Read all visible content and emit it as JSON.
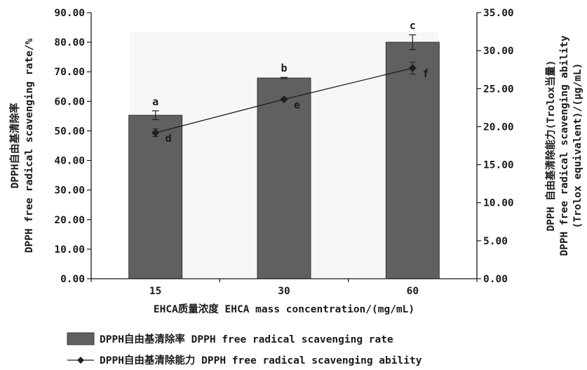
{
  "chart_data": {
    "type": "bar",
    "categories": [
      "15",
      "30",
      "60"
    ],
    "xlabel": "EHCA质量浓度 EHCA mass concentration/(mg/mL)",
    "left_axis": {
      "label_cn": "DPPH自由基清除率",
      "label_en": "DPPH free radical scavenging rate/%",
      "ylim": [
        0,
        90
      ],
      "ticks": [
        "0.00",
        "10.00",
        "20.00",
        "30.00",
        "40.00",
        "50.00",
        "60.00",
        "70.00",
        "80.00",
        "90.00"
      ]
    },
    "right_axis": {
      "label_cn": "DPPH 自由基清除能力(Trolox当量)",
      "label_en": "DPPH free radical scavenging ability",
      "label_unit": "(Trolox equivalent)/(μg/mL)",
      "ylim": [
        0,
        35
      ],
      "ticks": [
        "0.00",
        "5.00",
        "10.00",
        "15.00",
        "20.00",
        "25.00",
        "30.00",
        "35.00"
      ]
    },
    "series": [
      {
        "name": "DPPH自由基清除率 DPPH free radical scavenging rate",
        "type": "bar",
        "axis": "left",
        "values": [
          55.3,
          67.9,
          80.0
        ],
        "errors": [
          1.5,
          0.2,
          2.5
        ],
        "letters": [
          "a",
          "b",
          "c"
        ]
      },
      {
        "name": "DPPH自由基清除能力 DPPH free radical scavenging ability",
        "type": "line",
        "axis": "right",
        "values": [
          19.2,
          23.6,
          27.7
        ],
        "errors": [
          0.5,
          0.2,
          0.8
        ],
        "letters": [
          "d",
          "e",
          "f"
        ]
      }
    ],
    "grid": false,
    "legend_position": "bottom"
  },
  "colors": {
    "bar_fill": "#606060",
    "bar_stroke": "#3a3a3a",
    "plot_background": "#f7f7f7",
    "line": "#1f1f1f",
    "axis": "#1a1a1a"
  }
}
